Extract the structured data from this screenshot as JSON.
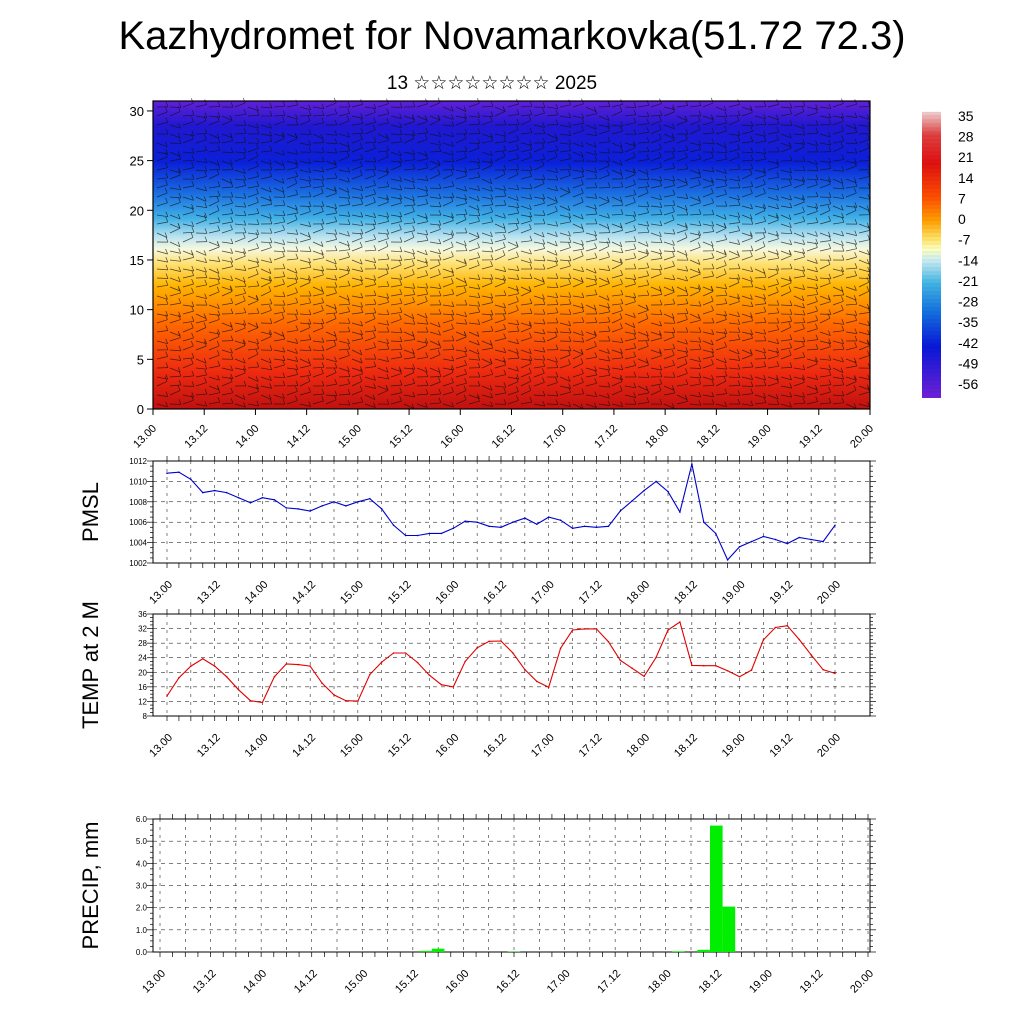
{
  "header": {
    "title": "Kazhydromet for Novamarkovka(51.72 72.3)",
    "subtitle": "13 ☆☆☆☆☆☆☆☆ 2025"
  },
  "chart_data": [
    {
      "type": "heatmap",
      "name": "cross-section",
      "x_ticks": [
        "13.00",
        "13.12",
        "14.00",
        "14.12",
        "15.00",
        "15.12",
        "16.00",
        "16.12",
        "17.00",
        "17.12",
        "18.00",
        "18.12",
        "19.00",
        "19.12",
        "20.00"
      ],
      "y_ticks": [
        0,
        5,
        10,
        15,
        20,
        25,
        30
      ],
      "ylim": [
        0,
        31
      ],
      "colorbar_labels": [
        "35",
        "28",
        "21",
        "14",
        "7",
        "0",
        "-7",
        "-14",
        "-21",
        "-28",
        "-35",
        "-42",
        "-49",
        "-56"
      ],
      "colorbar_colors": [
        "#f0d0d0",
        "#e02020",
        "#ff6a00",
        "#ffb000",
        "#ffe060",
        "#ffffc0",
        "#c0e8f0",
        "#40b0e0",
        "#1060e0",
        "#1020d0",
        "#7020d0"
      ],
      "wind_barbs": true
    },
    {
      "type": "line",
      "name": "PMSL",
      "ylabel": "PMSL",
      "color": "#0000cc",
      "ylim": [
        1002,
        1012
      ],
      "y_ticks": [
        1002,
        1004,
        1006,
        1008,
        1010,
        1012
      ],
      "x_ticks": [
        "13.00",
        "13.12",
        "14.00",
        "14.12",
        "15.00",
        "15.12",
        "16.00",
        "16.12",
        "17.00",
        "17.12",
        "18.00",
        "18.12",
        "19.00",
        "19.12",
        "20.00"
      ],
      "values": [
        1010.8,
        1010.9,
        1010.2,
        1008.9,
        1009.1,
        1008.9,
        1008.4,
        1007.9,
        1008.4,
        1008.2,
        1007.4,
        1007.3,
        1007.1,
        1007.6,
        1008.0,
        1007.6,
        1008.0,
        1008.3,
        1007.3,
        1005.7,
        1004.7,
        1004.7,
        1004.9,
        1004.9,
        1005.4,
        1006.1,
        1006.0,
        1005.6,
        1005.5,
        1006.0,
        1006.4,
        1005.8,
        1006.5,
        1006.2,
        1005.4,
        1005.6,
        1005.5,
        1005.6,
        1007.1,
        1008.1,
        1009.1,
        1010.0,
        1009.0,
        1007.0,
        1011.7,
        1006.0,
        1004.9,
        1002.3,
        1003.6,
        1004.1,
        1004.6,
        1004.3,
        1003.9,
        1004.5,
        1004.3,
        1004.1,
        1005.7
      ]
    },
    {
      "type": "line",
      "name": "TEMP at 2 M",
      "ylabel": "TEMP at 2 M",
      "color": "#e00000",
      "ylim": [
        8,
        36
      ],
      "y_ticks": [
        8,
        12,
        16,
        20,
        24,
        28,
        32,
        36
      ],
      "x_ticks": [
        "13.00",
        "13.12",
        "14.00",
        "14.12",
        "15.00",
        "15.12",
        "16.00",
        "16.12",
        "17.00",
        "17.12",
        "18.00",
        "18.12",
        "19.00",
        "19.12",
        "20.00"
      ],
      "values": [
        13.5,
        18.5,
        21.7,
        23.7,
        21.7,
        18.8,
        15.2,
        12.2,
        11.7,
        18.8,
        22.3,
        22.1,
        21.7,
        17.0,
        13.8,
        12.2,
        12.1,
        19.4,
        22.8,
        25.3,
        25.3,
        22.7,
        19.2,
        16.6,
        16.0,
        23.0,
        26.7,
        28.5,
        28.6,
        25.3,
        20.7,
        17.5,
        15.9,
        26.6,
        31.6,
        31.9,
        31.9,
        28.4,
        23.3,
        21.1,
        18.9,
        24.1,
        31.6,
        33.8,
        21.9,
        21.8,
        21.8,
        20.4,
        18.8,
        20.6,
        28.9,
        32.3,
        32.8,
        29.0,
        24.8,
        20.7,
        19.7
      ]
    },
    {
      "type": "bar",
      "name": "PRECIP, mm",
      "ylabel": "PRECIP, mm",
      "color": "#00ee00",
      "ylim": [
        0,
        6
      ],
      "y_ticks": [
        "0.0",
        "1.0",
        "2.0",
        "3.0",
        "4.0",
        "5.0",
        "6.0"
      ],
      "x_ticks": [
        "13.00",
        "13.12",
        "14.00",
        "14.12",
        "15.00",
        "15.12",
        "16.00",
        "16.12",
        "17.00",
        "17.12",
        "18.00",
        "18.12",
        "19.00",
        "19.12",
        "20.00"
      ],
      "values": [
        0,
        0,
        0,
        0,
        0,
        0,
        0,
        0,
        0,
        0,
        0,
        0,
        0,
        0,
        0,
        0,
        0,
        0,
        0,
        0,
        0,
        0.05,
        0.15,
        0,
        0,
        0,
        0,
        0,
        0.02,
        0,
        0,
        0,
        0,
        0,
        0,
        0,
        0,
        0,
        0,
        0,
        0,
        0.03,
        0,
        0.1,
        5.7,
        2.05,
        0,
        0,
        0,
        0,
        0,
        0,
        0,
        0,
        0,
        0,
        0
      ]
    }
  ]
}
